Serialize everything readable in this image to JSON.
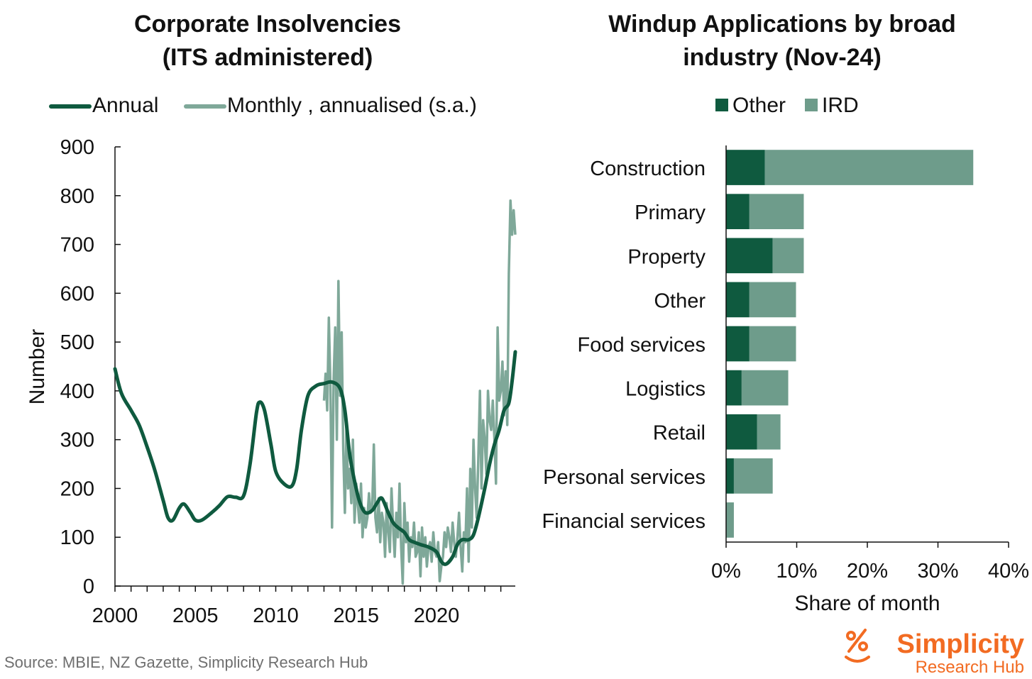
{
  "source": "Source: MBIE, NZ Gazette, Simplicity Research Hub",
  "logo": {
    "name": "Simplicity",
    "sub": "Research Hub"
  },
  "colors": {
    "dark": "#0f5a3f",
    "light": "#7fa899",
    "ird": "#6e9c8b",
    "brand": "#f26b22"
  },
  "chart_data": [
    {
      "type": "line",
      "title": [
        "Corporate Insolvencies",
        "(ITS administered)"
      ],
      "ylabel": "Number",
      "xlabel": "",
      "ylim": [
        0,
        900
      ],
      "yticks": [
        "0",
        "100",
        "200",
        "300",
        "400",
        "500",
        "600",
        "700",
        "800",
        "900"
      ],
      "xlim": [
        2000,
        2024.9
      ],
      "xticks": [
        "2000",
        "2005",
        "2010",
        "2015",
        "2020"
      ],
      "legend": "top",
      "grid": false,
      "series": [
        {
          "name": "Annual",
          "color": "#0f5a3f",
          "points": [
            [
              2000,
              445
            ],
            [
              2000.4,
              395
            ],
            [
              2001,
              360
            ],
            [
              2001.5,
              330
            ],
            [
              2002,
              285
            ],
            [
              2002.5,
              235
            ],
            [
              2003,
              175
            ],
            [
              2003.3,
              140
            ],
            [
              2003.6,
              135
            ],
            [
              2004,
              160
            ],
            [
              2004.3,
              168
            ],
            [
              2004.7,
              150
            ],
            [
              2005,
              135
            ],
            [
              2005.4,
              135
            ],
            [
              2006,
              150
            ],
            [
              2006.5,
              165
            ],
            [
              2007,
              183
            ],
            [
              2007.5,
              182
            ],
            [
              2008,
              185
            ],
            [
              2008.4,
              250
            ],
            [
              2008.8,
              355
            ],
            [
              2009,
              377
            ],
            [
              2009.3,
              360
            ],
            [
              2009.7,
              290
            ],
            [
              2010,
              235
            ],
            [
              2010.5,
              210
            ],
            [
              2011,
              205
            ],
            [
              2011.3,
              240
            ],
            [
              2011.6,
              320
            ],
            [
              2012,
              390
            ],
            [
              2012.5,
              410
            ],
            [
              2013,
              415
            ],
            [
              2013.5,
              418
            ],
            [
              2014,
              405
            ],
            [
              2014.3,
              360
            ],
            [
              2014.6,
              270
            ],
            [
              2015,
              200
            ],
            [
              2015.3,
              165
            ],
            [
              2015.6,
              150
            ],
            [
              2016,
              155
            ],
            [
              2016.3,
              170
            ],
            [
              2016.6,
              180
            ],
            [
              2017,
              150
            ],
            [
              2017.3,
              130
            ],
            [
              2017.6,
              120
            ],
            [
              2018,
              110
            ],
            [
              2018.3,
              95
            ],
            [
              2018.6,
              90
            ],
            [
              2019,
              85
            ],
            [
              2019.5,
              80
            ],
            [
              2020,
              70
            ],
            [
              2020.3,
              50
            ],
            [
              2020.6,
              45
            ],
            [
              2021,
              60
            ],
            [
              2021.3,
              85
            ],
            [
              2021.6,
              95
            ],
            [
              2022,
              95
            ],
            [
              2022.3,
              105
            ],
            [
              2022.6,
              140
            ],
            [
              2023,
              200
            ],
            [
              2023.3,
              250
            ],
            [
              2023.6,
              290
            ],
            [
              2023.9,
              320
            ],
            [
              2024.2,
              360
            ],
            [
              2024.5,
              375
            ],
            [
              2024.7,
              420
            ],
            [
              2024.9,
              480
            ]
          ]
        },
        {
          "name": "Monthly , annualised (s.a.)",
          "color": "#7fa899",
          "points": [
            [
              2013,
              380
            ],
            [
              2013.1,
              435
            ],
            [
              2013.2,
              360
            ],
            [
              2013.3,
              550
            ],
            [
              2013.4,
              410
            ],
            [
              2013.5,
              120
            ],
            [
              2013.6,
              420
            ],
            [
              2013.7,
              530
            ],
            [
              2013.8,
              300
            ],
            [
              2013.9,
              625
            ],
            [
              2014,
              390
            ],
            [
              2014.1,
              520
            ],
            [
              2014.2,
              280
            ],
            [
              2014.3,
              150
            ],
            [
              2014.4,
              330
            ],
            [
              2014.5,
              200
            ],
            [
              2014.6,
              240
            ],
            [
              2014.7,
              170
            ],
            [
              2014.8,
              300
            ],
            [
              2014.9,
              130
            ],
            [
              2015,
              210
            ],
            [
              2015.1,
              170
            ],
            [
              2015.2,
              130
            ],
            [
              2015.3,
              210
            ],
            [
              2015.4,
              100
            ],
            [
              2015.5,
              160
            ],
            [
              2015.6,
              120
            ],
            [
              2015.7,
              140
            ],
            [
              2015.8,
              190
            ],
            [
              2015.9,
              150
            ],
            [
              2016,
              160
            ],
            [
              2016.1,
              290
            ],
            [
              2016.2,
              140
            ],
            [
              2016.3,
              110
            ],
            [
              2016.4,
              180
            ],
            [
              2016.5,
              90
            ],
            [
              2016.6,
              150
            ],
            [
              2016.7,
              130
            ],
            [
              2016.8,
              60
            ],
            [
              2016.9,
              170
            ],
            [
              2017,
              110
            ],
            [
              2017.1,
              70
            ],
            [
              2017.2,
              200
            ],
            [
              2017.3,
              120
            ],
            [
              2017.4,
              60
            ],
            [
              2017.5,
              150
            ],
            [
              2017.6,
              100
            ],
            [
              2017.7,
              210
            ],
            [
              2017.8,
              80
            ],
            [
              2017.9,
              5
            ],
            [
              2018,
              170
            ],
            [
              2018.1,
              90
            ],
            [
              2018.2,
              130
            ],
            [
              2018.3,
              50
            ],
            [
              2018.4,
              100
            ],
            [
              2018.5,
              80
            ],
            [
              2018.6,
              130
            ],
            [
              2018.7,
              60
            ],
            [
              2018.8,
              70
            ],
            [
              2018.9,
              110
            ],
            [
              2019,
              20
            ],
            [
              2019.1,
              120
            ],
            [
              2019.2,
              60
            ],
            [
              2019.3,
              100
            ],
            [
              2019.4,
              40
            ],
            [
              2019.5,
              80
            ],
            [
              2019.6,
              90
            ],
            [
              2019.7,
              50
            ],
            [
              2019.8,
              110
            ],
            [
              2019.9,
              70
            ],
            [
              2020,
              60
            ],
            [
              2020.1,
              90
            ],
            [
              2020.2,
              10
            ],
            [
              2020.3,
              40
            ],
            [
              2020.4,
              60
            ],
            [
              2020.5,
              110
            ],
            [
              2020.6,
              80
            ],
            [
              2020.7,
              120
            ],
            [
              2020.8,
              100
            ],
            [
              2020.9,
              70
            ],
            [
              2021,
              130
            ],
            [
              2021.1,
              90
            ],
            [
              2021.2,
              60
            ],
            [
              2021.3,
              100
            ],
            [
              2021.4,
              150
            ],
            [
              2021.5,
              80
            ],
            [
              2021.6,
              30
            ],
            [
              2021.7,
              110
            ],
            [
              2021.8,
              90
            ],
            [
              2021.9,
              200
            ],
            [
              2022,
              50
            ],
            [
              2022.1,
              240
            ],
            [
              2022.2,
              120
            ],
            [
              2022.3,
              300
            ],
            [
              2022.4,
              200
            ],
            [
              2022.5,
              140
            ],
            [
              2022.6,
              260
            ],
            [
              2022.7,
              400
            ],
            [
              2022.8,
              200
            ],
            [
              2022.9,
              340
            ],
            [
              2023,
              300
            ],
            [
              2023.1,
              230
            ],
            [
              2023.2,
              400
            ],
            [
              2023.3,
              340
            ],
            [
              2023.4,
              320
            ],
            [
              2023.5,
              380
            ],
            [
              2023.6,
              300
            ],
            [
              2023.7,
              210
            ],
            [
              2023.8,
              530
            ],
            [
              2023.9,
              380
            ],
            [
              2024,
              400
            ],
            [
              2024.1,
              460
            ],
            [
              2024.2,
              350
            ],
            [
              2024.3,
              440
            ],
            [
              2024.4,
              330
            ],
            [
              2024.5,
              640
            ],
            [
              2024.6,
              790
            ],
            [
              2024.7,
              720
            ],
            [
              2024.8,
              770
            ],
            [
              2024.9,
              720
            ]
          ]
        }
      ]
    },
    {
      "type": "bar",
      "orientation": "horizontal",
      "stacked": true,
      "title": [
        "Windup Applications by broad",
        "industry (Nov-24)"
      ],
      "xlabel": "Share of month",
      "ylabel": "",
      "xlim": [
        0,
        40
      ],
      "xticks": [
        "0%",
        "10%",
        "20%",
        "30%",
        "40%"
      ],
      "legend": "top",
      "grid": false,
      "categories": [
        "Construction",
        "Primary",
        "Property",
        "Other",
        "Food services",
        "Logistics",
        "Retail",
        "Personal services",
        "Financial services"
      ],
      "series": [
        {
          "name": "Other",
          "color": "#0f5a3f",
          "values": [
            5.5,
            3.3,
            6.6,
            3.3,
            3.3,
            2.2,
            4.4,
            1.1,
            0
          ]
        },
        {
          "name": "IRD",
          "color": "#6e9c8b",
          "values": [
            29.5,
            7.7,
            4.4,
            6.6,
            6.6,
            6.6,
            3.3,
            5.5,
            1.1
          ]
        }
      ]
    }
  ]
}
